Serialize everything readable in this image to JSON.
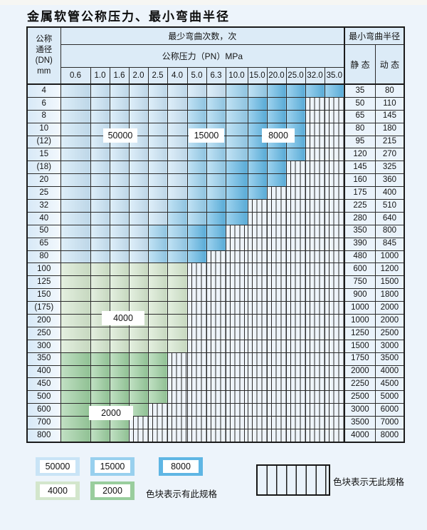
{
  "title": "金属软管公称压力、最小弯曲半径",
  "colors": {
    "blue_light": "#c9e4f6",
    "blue_mid": "#98d0ee",
    "blue_dark": "#5fb6e4",
    "green_light": "#d3e6cc",
    "green_dark": "#99cd9d",
    "header_bg": "#dcebf7",
    "hatch_bg": "#eef4fa"
  },
  "table": {
    "corner_lines": [
      "公称",
      "通径",
      "(DN)",
      "mm"
    ],
    "bend_cycles_header": "最少弯曲次数，次",
    "pressure_header": "公称压力（PN）MPa",
    "radius_header": "最小弯曲半径",
    "static_label": "静 态",
    "dynamic_label": "动 态",
    "pressure_columns": [
      "0.6",
      "1.0",
      "1.6",
      "2.0",
      "2.5",
      "4.0",
      "5.0",
      "6.3",
      "10.0",
      "15.0",
      "20.0",
      "25.0",
      "32.0",
      "35.0"
    ],
    "rows": [
      {
        "dn": "4",
        "static": "35",
        "dynamic": "80",
        "cells": [
          "L",
          "L",
          "L",
          "L",
          "L",
          "L",
          "L",
          "L",
          "M",
          "M",
          "D",
          "D",
          "D",
          "D"
        ]
      },
      {
        "dn": "6",
        "static": "50",
        "dynamic": "110",
        "cells": [
          "L",
          "L",
          "L",
          "L",
          "L",
          "L",
          "M",
          "M",
          "M",
          "D",
          "D",
          "D",
          "X",
          "X"
        ]
      },
      {
        "dn": "8",
        "static": "65",
        "dynamic": "145",
        "cells": [
          "L",
          "L",
          "L",
          "L",
          "L",
          "L",
          "M",
          "M",
          "M",
          "D",
          "D",
          "D",
          "X",
          "X"
        ]
      },
      {
        "dn": "10",
        "static": "80",
        "dynamic": "180",
        "cells": [
          "L",
          "L",
          "L",
          "L",
          "L",
          "L",
          "M",
          "M",
          "M",
          "D",
          "D",
          "D",
          "X",
          "X"
        ]
      },
      {
        "dn": "(12)",
        "static": "95",
        "dynamic": "215",
        "cells": [
          "L",
          "L",
          "L",
          "L",
          "L",
          "L",
          "M",
          "M",
          "M",
          "D",
          "D",
          "D",
          "X",
          "X"
        ]
      },
      {
        "dn": "15",
        "static": "120",
        "dynamic": "270",
        "cells": [
          "L",
          "L",
          "L",
          "L",
          "L",
          "L",
          "M",
          "M",
          "M",
          "D",
          "D",
          "D",
          "X",
          "X"
        ]
      },
      {
        "dn": "(18)",
        "static": "145",
        "dynamic": "325",
        "cells": [
          "L",
          "L",
          "L",
          "L",
          "L",
          "L",
          "M",
          "M",
          "D",
          "D",
          "D",
          "X",
          "X",
          "X"
        ]
      },
      {
        "dn": "20",
        "static": "160",
        "dynamic": "360",
        "cells": [
          "L",
          "L",
          "L",
          "L",
          "L",
          "L",
          "M",
          "M",
          "D",
          "D",
          "D",
          "X",
          "X",
          "X"
        ]
      },
      {
        "dn": "25",
        "static": "175",
        "dynamic": "400",
        "cells": [
          "L",
          "L",
          "L",
          "L",
          "L",
          "L",
          "M",
          "M",
          "D",
          "D",
          "X",
          "X",
          "X",
          "X"
        ]
      },
      {
        "dn": "32",
        "static": "225",
        "dynamic": "510",
        "cells": [
          "L",
          "L",
          "L",
          "L",
          "L",
          "M",
          "M",
          "D",
          "D",
          "X",
          "X",
          "X",
          "X",
          "X"
        ]
      },
      {
        "dn": "40",
        "static": "280",
        "dynamic": "640",
        "cells": [
          "L",
          "L",
          "L",
          "L",
          "L",
          "M",
          "M",
          "D",
          "D",
          "X",
          "X",
          "X",
          "X",
          "X"
        ]
      },
      {
        "dn": "50",
        "static": "350",
        "dynamic": "800",
        "cells": [
          "L",
          "L",
          "L",
          "L",
          "M",
          "M",
          "D",
          "D",
          "X",
          "X",
          "X",
          "X",
          "X",
          "X"
        ]
      },
      {
        "dn": "65",
        "static": "390",
        "dynamic": "845",
        "cells": [
          "L",
          "L",
          "L",
          "L",
          "M",
          "M",
          "D",
          "D",
          "X",
          "X",
          "X",
          "X",
          "X",
          "X"
        ]
      },
      {
        "dn": "80",
        "static": "480",
        "dynamic": "1000",
        "cells": [
          "L",
          "L",
          "L",
          "L",
          "M",
          "M",
          "D",
          "X",
          "X",
          "X",
          "X",
          "X",
          "X",
          "X"
        ]
      },
      {
        "dn": "100",
        "static": "600",
        "dynamic": "1200",
        "cells": [
          "GL",
          "GL",
          "GL",
          "GL",
          "GL",
          "GL",
          "X",
          "X",
          "X",
          "X",
          "X",
          "X",
          "X",
          "X"
        ]
      },
      {
        "dn": "125",
        "static": "750",
        "dynamic": "1500",
        "cells": [
          "GL",
          "GL",
          "GL",
          "GL",
          "GL",
          "GL",
          "X",
          "X",
          "X",
          "X",
          "X",
          "X",
          "X",
          "X"
        ]
      },
      {
        "dn": "150",
        "static": "900",
        "dynamic": "1800",
        "cells": [
          "GL",
          "GL",
          "GL",
          "GL",
          "GL",
          "GL",
          "X",
          "X",
          "X",
          "X",
          "X",
          "X",
          "X",
          "X"
        ]
      },
      {
        "dn": "(175)",
        "static": "1000",
        "dynamic": "2000",
        "cells": [
          "GL",
          "GL",
          "GL",
          "GL",
          "GL",
          "GL",
          "X",
          "X",
          "X",
          "X",
          "X",
          "X",
          "X",
          "X"
        ]
      },
      {
        "dn": "200",
        "static": "1000",
        "dynamic": "2000",
        "cells": [
          "GL",
          "GL",
          "GL",
          "GL",
          "GL",
          "GL",
          "X",
          "X",
          "X",
          "X",
          "X",
          "X",
          "X",
          "X"
        ]
      },
      {
        "dn": "250",
        "static": "1250",
        "dynamic": "2500",
        "cells": [
          "GL",
          "GL",
          "GL",
          "GL",
          "GL",
          "GL",
          "X",
          "X",
          "X",
          "X",
          "X",
          "X",
          "X",
          "X"
        ]
      },
      {
        "dn": "300",
        "static": "1500",
        "dynamic": "3000",
        "cells": [
          "GL",
          "GL",
          "GL",
          "GL",
          "GL",
          "GL",
          "X",
          "X",
          "X",
          "X",
          "X",
          "X",
          "X",
          "X"
        ]
      },
      {
        "dn": "350",
        "static": "1750",
        "dynamic": "3500",
        "cells": [
          "GD",
          "GD",
          "GD",
          "GD",
          "GD",
          "X",
          "X",
          "X",
          "X",
          "X",
          "X",
          "X",
          "X",
          "X"
        ]
      },
      {
        "dn": "400",
        "static": "2000",
        "dynamic": "4000",
        "cells": [
          "GD",
          "GD",
          "GD",
          "GD",
          "GD",
          "X",
          "X",
          "X",
          "X",
          "X",
          "X",
          "X",
          "X",
          "X"
        ]
      },
      {
        "dn": "450",
        "static": "2250",
        "dynamic": "4500",
        "cells": [
          "GD",
          "GD",
          "GD",
          "GD",
          "GD",
          "X",
          "X",
          "X",
          "X",
          "X",
          "X",
          "X",
          "X",
          "X"
        ]
      },
      {
        "dn": "500",
        "static": "2500",
        "dynamic": "5000",
        "cells": [
          "GD",
          "GD",
          "GD",
          "GD",
          "GD",
          "X",
          "X",
          "X",
          "X",
          "X",
          "X",
          "X",
          "X",
          "X"
        ]
      },
      {
        "dn": "600",
        "static": "3000",
        "dynamic": "6000",
        "cells": [
          "GD",
          "GD",
          "GD",
          "GD",
          "X",
          "X",
          "X",
          "X",
          "X",
          "X",
          "X",
          "X",
          "X",
          "X"
        ]
      },
      {
        "dn": "700",
        "static": "3500",
        "dynamic": "7000",
        "cells": [
          "GD",
          "GD",
          "GD",
          "X",
          "X",
          "X",
          "X",
          "X",
          "X",
          "X",
          "X",
          "X",
          "X",
          "X"
        ]
      },
      {
        "dn": "800",
        "static": "4000",
        "dynamic": "8000",
        "cells": [
          "GD",
          "GD",
          "GD",
          "X",
          "X",
          "X",
          "X",
          "X",
          "X",
          "X",
          "X",
          "X",
          "X",
          "X"
        ]
      }
    ]
  },
  "region_labels": [
    "50000",
    "15000",
    "8000",
    "4000",
    "2000"
  ],
  "legend": {
    "items": [
      {
        "value": "50000",
        "color": "#c9e4f6"
      },
      {
        "value": "15000",
        "color": "#98d0ee"
      },
      {
        "value": "8000",
        "color": "#5fb6e4"
      },
      {
        "value": "4000",
        "color": "#d3e6cc"
      },
      {
        "value": "2000",
        "color": "#99cd9d"
      }
    ],
    "has_spec_text": "色块表示有此规格",
    "no_spec_text": "色块表示无此规格"
  }
}
